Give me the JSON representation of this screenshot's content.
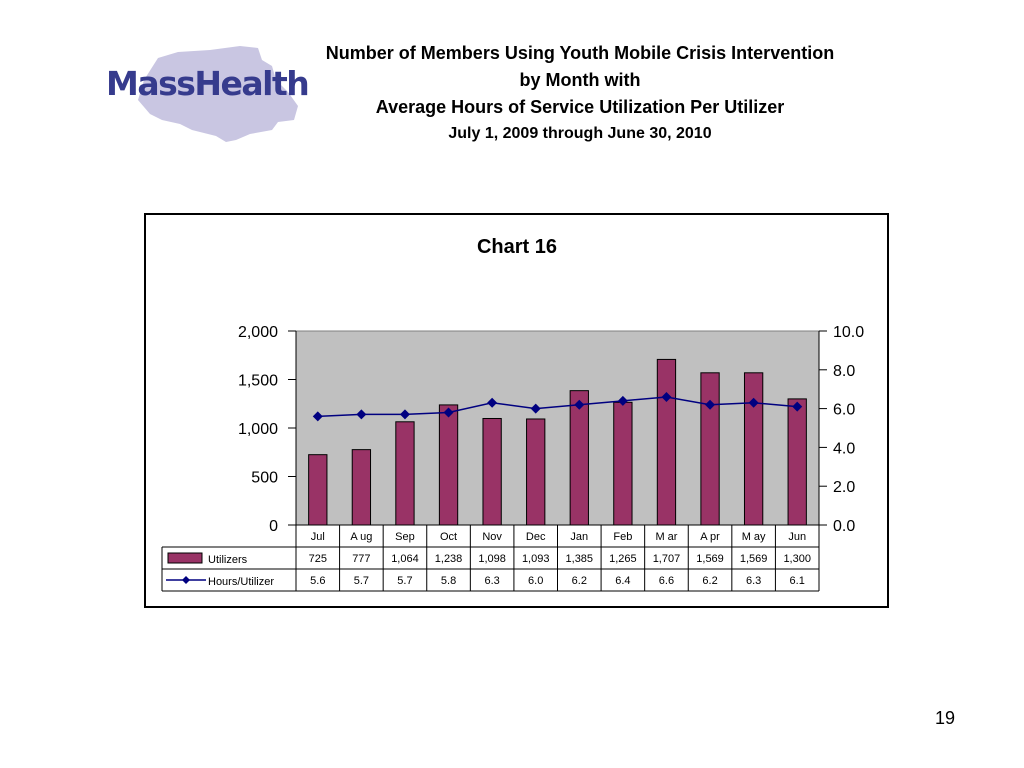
{
  "slide": {
    "logo_text": "MassHealth",
    "title_lines": [
      "Number of Members Using Youth Mobile Crisis Intervention",
      "by Month with",
      "Average Hours of Service Utilization Per Utilizer"
    ],
    "subtitle": "July 1, 2009 through June 30, 2010",
    "page_number": "19"
  },
  "colors": {
    "bar": "#993366",
    "line": "#000080",
    "plot_bg": "#c0c0c0",
    "logo_text": "#363b8d",
    "logo_map": "#c9c6e2"
  },
  "chart_data": {
    "type": "bar",
    "title": "Chart 16",
    "categories": [
      "Jul",
      "Aug",
      "Sep",
      "Oct",
      "Nov",
      "Dec",
      "Jan",
      "Feb",
      "Mar",
      "Apr",
      "May",
      "Jun"
    ],
    "category_labels_display": [
      "Jul",
      "A ug",
      "Sep",
      "Oct",
      "Nov",
      "Dec",
      "Jan",
      "Feb",
      "M ar",
      "A pr",
      "M ay",
      "Jun"
    ],
    "series": [
      {
        "name": "Utilizers",
        "kind": "bar",
        "axis": "left",
        "values": [
          725,
          777,
          1064,
          1238,
          1098,
          1093,
          1385,
          1265,
          1707,
          1569,
          1569,
          1300
        ],
        "table_labels": [
          "725",
          "777",
          "1,064",
          "1,238",
          "1,098",
          "1,093",
          "1,385",
          "1,265",
          "1,707",
          "1,569",
          "1,569",
          "1,300"
        ]
      },
      {
        "name": "Hours/Utilizer",
        "kind": "line",
        "axis": "right",
        "values": [
          5.6,
          5.7,
          5.7,
          5.8,
          6.3,
          6.0,
          6.2,
          6.4,
          6.6,
          6.2,
          6.3,
          6.1
        ],
        "table_labels": [
          "5.6",
          "5.7",
          "5.7",
          "5.8",
          "6.3",
          "6.0",
          "6.2",
          "6.4",
          "6.6",
          "6.2",
          "6.3",
          "6.1"
        ]
      }
    ],
    "y_left": {
      "range": [
        0,
        2000
      ],
      "ticks": [
        0,
        500,
        1000,
        1500,
        2000
      ],
      "tick_labels": [
        "0",
        "500",
        "1,000",
        "1,500",
        "2,000"
      ]
    },
    "y_right": {
      "range": [
        0,
        10
      ],
      "ticks": [
        0,
        2,
        4,
        6,
        8,
        10
      ],
      "tick_labels": [
        "0.0",
        "2.0",
        "4.0",
        "6.0",
        "8.0",
        "10.0"
      ]
    },
    "grid": false,
    "legend": "data-table"
  }
}
